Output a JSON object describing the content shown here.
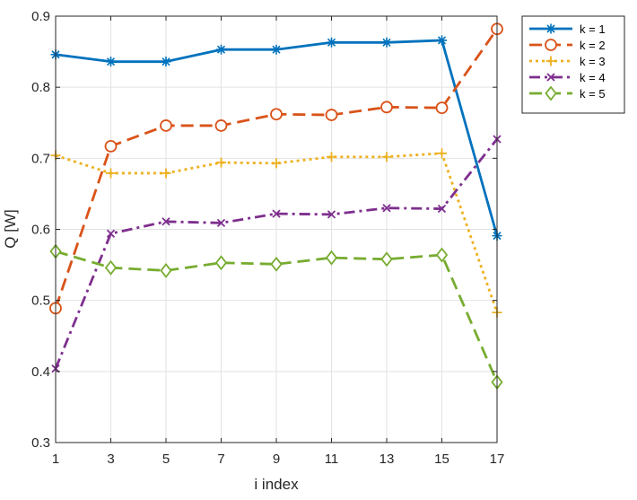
{
  "chart_data": {
    "type": "line",
    "xlabel": "i index",
    "ylabel": "Q [W]",
    "xlim": [
      1,
      17
    ],
    "ylim": [
      0.3,
      0.9
    ],
    "x": [
      1,
      3,
      5,
      7,
      9,
      11,
      13,
      15,
      17
    ],
    "xticks": [
      "1",
      "3",
      "5",
      "7",
      "9",
      "11",
      "13",
      "15",
      "17"
    ],
    "yticks": [
      "0.3",
      "0.4",
      "0.5",
      "0.6",
      "0.7",
      "0.8",
      "0.9"
    ],
    "grid": true,
    "legend_position": "outside top-right",
    "series": [
      {
        "name": "k = 1",
        "color": "#0072BD",
        "line_style": "solid",
        "marker": "asterisk",
        "values": [
          0.846,
          0.836,
          0.836,
          0.853,
          0.853,
          0.863,
          0.863,
          0.866,
          0.591
        ]
      },
      {
        "name": "k = 2",
        "color": "#D95319",
        "line_style": "dashed",
        "marker": "circle",
        "values": [
          0.489,
          0.717,
          0.746,
          0.746,
          0.762,
          0.761,
          0.772,
          0.771,
          0.882
        ]
      },
      {
        "name": "k = 3",
        "color": "#EDB120",
        "line_style": "dotted",
        "marker": "plus",
        "values": [
          0.704,
          0.679,
          0.679,
          0.694,
          0.693,
          0.702,
          0.702,
          0.707,
          0.483
        ]
      },
      {
        "name": "k = 4",
        "color": "#7E2F8E",
        "line_style": "dash-dot",
        "marker": "x",
        "values": [
          0.404,
          0.594,
          0.611,
          0.609,
          0.622,
          0.621,
          0.63,
          0.629,
          0.727
        ]
      },
      {
        "name": "k = 5",
        "color": "#77AC30",
        "line_style": "dashed",
        "marker": "diamond",
        "values": [
          0.569,
          0.546,
          0.542,
          0.553,
          0.551,
          0.56,
          0.558,
          0.564,
          0.385
        ]
      }
    ]
  }
}
